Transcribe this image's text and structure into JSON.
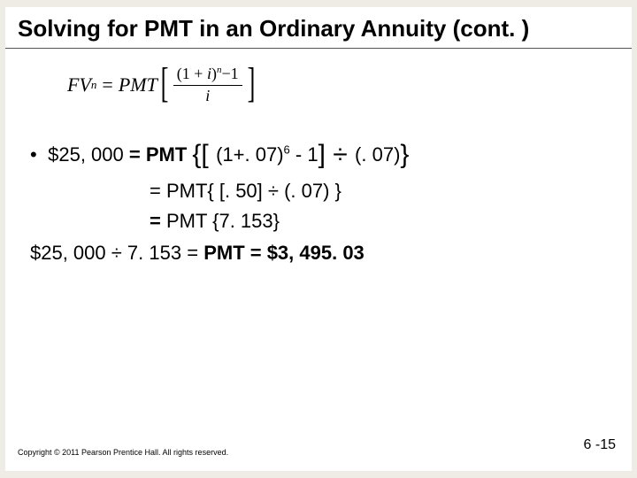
{
  "colors": {
    "page_bg": "#efece5",
    "slide_bg": "#ffffff",
    "text": "#000000",
    "rule": "#555555"
  },
  "typography": {
    "title_family": "Verdana",
    "title_size_pt": 26,
    "title_weight": "bold",
    "body_family": "Verdana",
    "body_size_pt": 22,
    "formula_family": "Times New Roman",
    "formula_size_pt": 22,
    "copyright_size_pt": 9,
    "pagenum_size_pt": 16
  },
  "title": "Solving for PMT in an Ordinary Annuity (cont. )",
  "formula": {
    "lhs_var": "FV",
    "lhs_sub": "n",
    "eq": "=",
    "rhs_var": "PMT",
    "frac_num_open": "(1 + ",
    "frac_num_i": "i",
    "frac_num_close": ")",
    "frac_num_sup": "n",
    "frac_num_minus": "−1",
    "frac_den": "i"
  },
  "lines": {
    "l1_lead": "$25, 000 ",
    "l1_pmteq": "= PMT ",
    "l1_open": "{[ ",
    "l1_base": "(1+. 07)",
    "l1_exp": "6",
    "l1_mid": " - 1",
    "l1_close1": "] ",
    "l1_div": "÷ ",
    "l1_tail": "(. 07)",
    "l1_close2": "}",
    "l2": "= PMT{ [. 50] ÷ (. 07) }",
    "l3_a": "= ",
    "l3_b": "PMT {7. 153}",
    "final_a": "$25, 000 ÷ 7. 153 = ",
    "final_b": "PMT =  $3, 495. 03"
  },
  "copyright": "Copyright © 2011 Pearson Prentice Hall. All rights reserved.",
  "pagenum": "6 -15"
}
